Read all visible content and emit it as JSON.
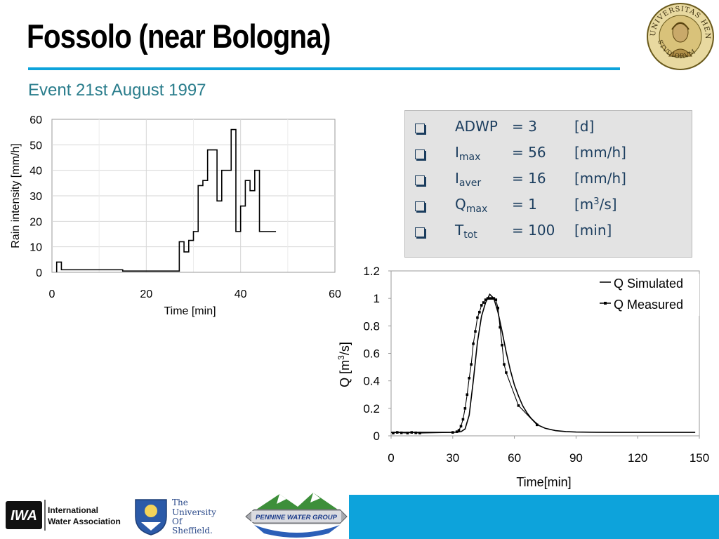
{
  "header": {
    "title": "Fossolo (near Bologna)",
    "subtitle": "Event 21st August 1997",
    "seal_text": "UNIVERSITAS HENRIAE STVDIORVM"
  },
  "colors": {
    "accent": "#0da3db",
    "subtitle": "#2a7d8c",
    "params_text": "#1b3d5e"
  },
  "params": [
    {
      "name": "ADWP",
      "sub": "",
      "eq": "= 3",
      "unit": "[d]",
      "unit_sup": "",
      "unit_tail": ""
    },
    {
      "name": "I",
      "sub": "max",
      "eq": "= 56",
      "unit": "[mm/h]",
      "unit_sup": "",
      "unit_tail": ""
    },
    {
      "name": "I",
      "sub": "aver",
      "eq": "= 16",
      "unit": "[mm/h]",
      "unit_sup": "",
      "unit_tail": ""
    },
    {
      "name": "Q",
      "sub": "max",
      "eq": "= 1",
      "unit": "[m",
      "unit_sup": "3",
      "unit_tail": "/s]"
    },
    {
      "name": "T",
      "sub": "tot",
      "eq": "= 100",
      "unit": "[min]",
      "unit_sup": "",
      "unit_tail": ""
    }
  ],
  "chart_data": [
    {
      "type": "line",
      "subtype": "step",
      "title": "",
      "xlabel": "Time [min]",
      "ylabel": "Rain intensity [mm/h]",
      "xlim": [
        0,
        60
      ],
      "ylim": [
        0,
        60
      ],
      "xticks": [
        "0",
        "20",
        "40",
        "60"
      ],
      "yticks": [
        "0",
        "10",
        "20",
        "30",
        "40",
        "50",
        "60"
      ],
      "grid": true,
      "legend": "none",
      "series": [
        {
          "color": "#000000",
          "x": [
            1,
            2,
            15,
            27,
            28,
            29,
            30,
            31,
            32,
            33,
            35,
            36,
            38,
            39,
            40,
            41,
            42,
            43,
            44,
            46
          ],
          "y": [
            4,
            1,
            0.5,
            12,
            8,
            12.5,
            16,
            34,
            36,
            48,
            28,
            40,
            56,
            16,
            26,
            36,
            32,
            40,
            16,
            16
          ]
        }
      ]
    },
    {
      "type": "line",
      "title": "",
      "xlabel": "Time[min]",
      "ylabel": "Q [m3/s]",
      "ylabel_parts": [
        "Q [m",
        "3",
        "/s]"
      ],
      "xlim": [
        0,
        150
      ],
      "ylim": [
        0,
        1.2
      ],
      "xticks": [
        "0",
        "30",
        "60",
        "90",
        "120",
        "150"
      ],
      "yticks": [
        "0",
        "0.2",
        "0.4",
        "0.6",
        "0.8",
        "1",
        "1.2"
      ],
      "grid": false,
      "legend": "top-right",
      "series": [
        {
          "name": "Q Simulated",
          "style": "line",
          "color": "#000000",
          "x": [
            0,
            10,
            20,
            30,
            34,
            36,
            38,
            40,
            42,
            44,
            46,
            48,
            50,
            52,
            54,
            56,
            58,
            60,
            62,
            64,
            66,
            68,
            70,
            72,
            75,
            80,
            85,
            90,
            100,
            110,
            120,
            130,
            140,
            148
          ],
          "y": [
            0.025,
            0.025,
            0.025,
            0.025,
            0.03,
            0.05,
            0.15,
            0.4,
            0.68,
            0.87,
            0.97,
            1.03,
            1.0,
            0.9,
            0.76,
            0.61,
            0.48,
            0.37,
            0.29,
            0.22,
            0.17,
            0.13,
            0.1,
            0.075,
            0.055,
            0.038,
            0.031,
            0.028,
            0.026,
            0.025,
            0.025,
            0.025,
            0.025,
            0.025
          ]
        },
        {
          "name": "Q Measured",
          "style": "line-marker",
          "color": "#000000",
          "x": [
            1,
            3,
            5,
            8,
            10,
            12,
            14,
            30,
            32,
            33,
            34,
            35,
            36,
            37,
            38,
            39,
            40,
            41,
            42,
            43,
            44,
            45,
            46,
            47,
            48,
            49,
            50,
            51,
            52,
            53,
            54,
            55,
            56,
            62,
            71
          ],
          "y": [
            0.02,
            0.025,
            0.022,
            0.02,
            0.025,
            0.022,
            0.02,
            0.025,
            0.03,
            0.04,
            0.07,
            0.12,
            0.2,
            0.3,
            0.42,
            0.52,
            0.67,
            0.76,
            0.86,
            0.9,
            0.95,
            0.97,
            0.99,
            1.0,
            1.0,
            1.0,
            1.0,
            0.99,
            0.93,
            0.79,
            0.66,
            0.52,
            0.46,
            0.22,
            0.08
          ]
        }
      ]
    }
  ],
  "footer": {
    "iwa_abbr": "IWA",
    "iwa_name_1": "International",
    "iwa_name_2": "Water Association",
    "sheffield_1": "The",
    "sheffield_2": "University",
    "sheffield_3": "Of",
    "sheffield_4": "Sheffield.",
    "pennine": "PENNINE WATER GROUP"
  }
}
